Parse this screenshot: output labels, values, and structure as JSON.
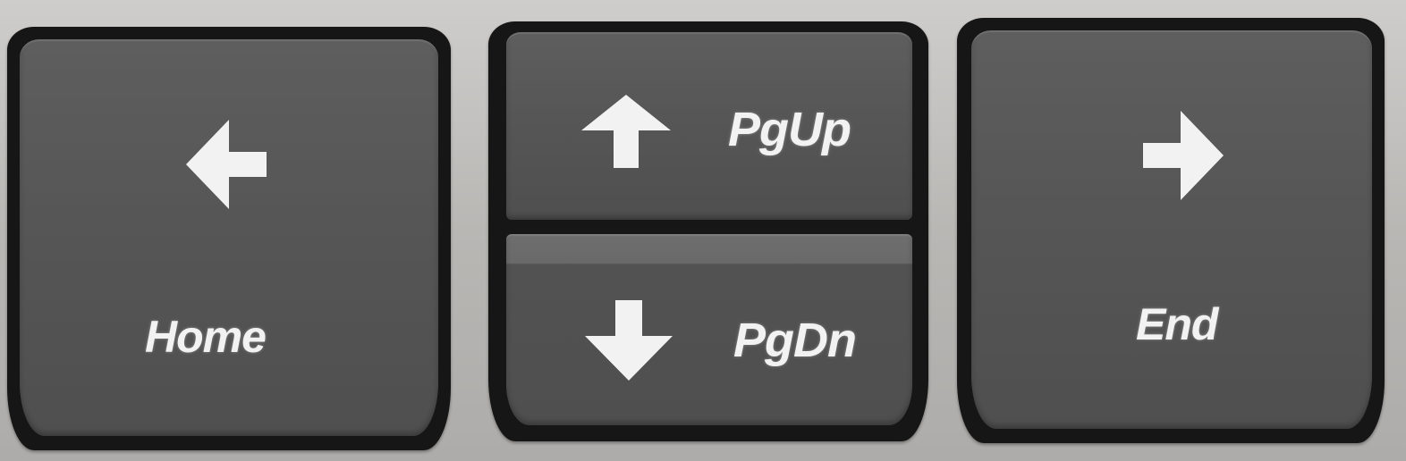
{
  "keys": {
    "home": {
      "label": "Home",
      "icon": "arrow-left-icon"
    },
    "pgup": {
      "label": "PgUp",
      "icon": "arrow-up-icon"
    },
    "pgdn": {
      "label": "PgDn",
      "icon": "arrow-down-icon"
    },
    "end": {
      "label": "End",
      "icon": "arrow-right-icon"
    }
  },
  "colors": {
    "keycap": "#565656",
    "legend": "#f2f2f2",
    "well": "#161616",
    "chassis": "#c2c0bd"
  }
}
